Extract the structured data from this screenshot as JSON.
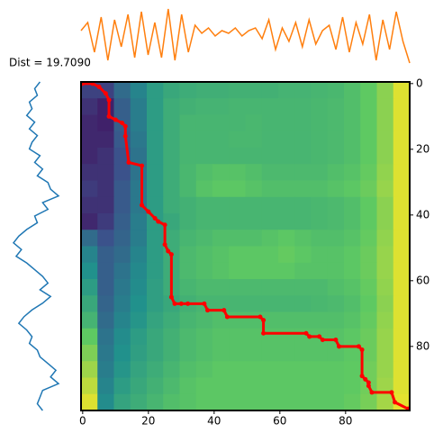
{
  "chart_data": [
    {
      "type": "heatmap",
      "title": "Dist = 19.7090",
      "values": [
        [
          0.2,
          0.2,
          0.35,
          0.45,
          0.55,
          0.6,
          0.62,
          0.63,
          0.63,
          0.64,
          0.64,
          0.64,
          0.65,
          0.65,
          0.66,
          0.67,
          0.7,
          0.75,
          0.82,
          0.95
        ],
        [
          0.15,
          0.1,
          0.3,
          0.42,
          0.55,
          0.62,
          0.64,
          0.65,
          0.65,
          0.66,
          0.66,
          0.66,
          0.66,
          0.66,
          0.67,
          0.68,
          0.7,
          0.75,
          0.82,
          0.95
        ],
        [
          0.12,
          0.1,
          0.3,
          0.42,
          0.55,
          0.62,
          0.66,
          0.66,
          0.66,
          0.66,
          0.67,
          0.66,
          0.66,
          0.66,
          0.67,
          0.68,
          0.7,
          0.75,
          0.82,
          0.95
        ],
        [
          0.12,
          0.12,
          0.28,
          0.4,
          0.55,
          0.62,
          0.66,
          0.66,
          0.66,
          0.67,
          0.67,
          0.66,
          0.66,
          0.66,
          0.67,
          0.68,
          0.7,
          0.75,
          0.82,
          0.95
        ],
        [
          0.12,
          0.15,
          0.25,
          0.38,
          0.55,
          0.62,
          0.66,
          0.66,
          0.66,
          0.66,
          0.66,
          0.66,
          0.66,
          0.66,
          0.67,
          0.68,
          0.7,
          0.75,
          0.82,
          0.95
        ],
        [
          0.15,
          0.15,
          0.25,
          0.38,
          0.55,
          0.62,
          0.67,
          0.7,
          0.72,
          0.72,
          0.7,
          0.68,
          0.68,
          0.68,
          0.68,
          0.7,
          0.72,
          0.76,
          0.83,
          0.95
        ],
        [
          0.18,
          0.15,
          0.28,
          0.4,
          0.55,
          0.62,
          0.67,
          0.72,
          0.74,
          0.74,
          0.72,
          0.7,
          0.7,
          0.7,
          0.7,
          0.72,
          0.74,
          0.77,
          0.84,
          0.95
        ],
        [
          0.15,
          0.15,
          0.28,
          0.4,
          0.55,
          0.62,
          0.64,
          0.66,
          0.66,
          0.66,
          0.66,
          0.66,
          0.66,
          0.66,
          0.67,
          0.68,
          0.7,
          0.75,
          0.82,
          0.95
        ],
        [
          0.12,
          0.18,
          0.3,
          0.42,
          0.55,
          0.6,
          0.64,
          0.66,
          0.66,
          0.66,
          0.66,
          0.66,
          0.66,
          0.66,
          0.67,
          0.68,
          0.7,
          0.75,
          0.82,
          0.95
        ],
        [
          0.35,
          0.25,
          0.32,
          0.42,
          0.55,
          0.62,
          0.66,
          0.68,
          0.7,
          0.7,
          0.7,
          0.72,
          0.74,
          0.72,
          0.7,
          0.7,
          0.72,
          0.76,
          0.83,
          0.95
        ],
        [
          0.45,
          0.3,
          0.35,
          0.45,
          0.55,
          0.62,
          0.68,
          0.7,
          0.72,
          0.74,
          0.74,
          0.74,
          0.76,
          0.74,
          0.72,
          0.72,
          0.74,
          0.77,
          0.84,
          0.95
        ],
        [
          0.5,
          0.3,
          0.38,
          0.47,
          0.55,
          0.62,
          0.68,
          0.7,
          0.72,
          0.74,
          0.74,
          0.74,
          0.74,
          0.72,
          0.72,
          0.72,
          0.74,
          0.77,
          0.84,
          0.95
        ],
        [
          0.55,
          0.3,
          0.4,
          0.48,
          0.56,
          0.62,
          0.66,
          0.68,
          0.68,
          0.68,
          0.68,
          0.68,
          0.68,
          0.68,
          0.68,
          0.7,
          0.72,
          0.76,
          0.83,
          0.95
        ],
        [
          0.6,
          0.32,
          0.42,
          0.5,
          0.56,
          0.6,
          0.64,
          0.66,
          0.66,
          0.66,
          0.66,
          0.66,
          0.66,
          0.66,
          0.67,
          0.68,
          0.7,
          0.75,
          0.82,
          0.95
        ],
        [
          0.65,
          0.35,
          0.45,
          0.52,
          0.58,
          0.62,
          0.66,
          0.68,
          0.7,
          0.7,
          0.7,
          0.7,
          0.7,
          0.7,
          0.7,
          0.7,
          0.72,
          0.76,
          0.83,
          0.95
        ],
        [
          0.75,
          0.38,
          0.48,
          0.55,
          0.6,
          0.64,
          0.68,
          0.7,
          0.72,
          0.72,
          0.72,
          0.72,
          0.72,
          0.72,
          0.72,
          0.72,
          0.74,
          0.77,
          0.84,
          0.95
        ],
        [
          0.8,
          0.4,
          0.5,
          0.56,
          0.6,
          0.64,
          0.68,
          0.7,
          0.72,
          0.72,
          0.72,
          0.72,
          0.72,
          0.72,
          0.72,
          0.72,
          0.74,
          0.77,
          0.84,
          0.95
        ],
        [
          0.85,
          0.42,
          0.52,
          0.58,
          0.62,
          0.66,
          0.7,
          0.72,
          0.74,
          0.74,
          0.74,
          0.74,
          0.74,
          0.74,
          0.74,
          0.74,
          0.75,
          0.78,
          0.84,
          0.95
        ],
        [
          0.9,
          0.45,
          0.55,
          0.6,
          0.64,
          0.68,
          0.72,
          0.74,
          0.74,
          0.74,
          0.74,
          0.74,
          0.74,
          0.74,
          0.74,
          0.74,
          0.75,
          0.78,
          0.85,
          0.95
        ],
        [
          0.95,
          0.48,
          0.58,
          0.62,
          0.66,
          0.7,
          0.72,
          0.74,
          0.74,
          0.74,
          0.74,
          0.74,
          0.74,
          0.74,
          0.74,
          0.74,
          0.76,
          0.79,
          0.86,
          0.96
        ]
      ],
      "xlim": [
        -0.5,
        99.5
      ],
      "ylim": [
        -0.5,
        99.5
      ],
      "xticks": [
        0,
        20,
        40,
        60,
        80
      ],
      "yticks": [
        0,
        20,
        40,
        60,
        80
      ],
      "path": {
        "color": "#ff0000",
        "x": [
          0,
          3,
          5,
          7,
          8,
          8,
          10,
          12,
          13,
          13,
          14,
          18,
          18,
          20,
          22,
          23,
          25,
          25,
          26,
          27,
          27,
          28,
          30,
          32,
          37,
          38,
          43,
          44,
          54,
          55,
          55,
          68,
          69,
          72,
          73,
          77,
          78,
          84,
          85,
          85,
          86,
          87,
          87,
          88,
          94,
          95,
          99
        ],
        "y": [
          0,
          0,
          1,
          3,
          5,
          10,
          11,
          12,
          13,
          16,
          24,
          25,
          37,
          39,
          41,
          42,
          43,
          49,
          51,
          52,
          65,
          67,
          67,
          67,
          67,
          69,
          69,
          71,
          71,
          72,
          76,
          76,
          77,
          77,
          78,
          78,
          80,
          80,
          81,
          89,
          90,
          91,
          92,
          94,
          94,
          97,
          99
        ]
      }
    },
    {
      "type": "line",
      "color": "#ff7f0e",
      "values": [
        0.2,
        0.5,
        -0.6,
        0.7,
        -0.9,
        0.6,
        -0.4,
        0.8,
        -0.8,
        0.9,
        -0.7,
        0.5,
        -0.8,
        1.0,
        -0.9,
        0.8,
        -0.6,
        0.4,
        0.1,
        0.3,
        0.0,
        0.2,
        0.1,
        0.3,
        0.0,
        0.2,
        0.3,
        -0.1,
        0.6,
        -0.5,
        0.3,
        -0.2,
        0.5,
        -0.4,
        0.6,
        -0.3,
        0.2,
        0.4,
        -0.5,
        0.7,
        -0.6,
        0.5,
        -0.3,
        0.8,
        -0.9,
        0.6,
        -0.5,
        0.9,
        -0.2,
        -1.0
      ]
    },
    {
      "type": "vline",
      "color": "#1f77b4",
      "values": [
        0.55,
        0.45,
        0.5,
        0.35,
        0.4,
        0.3,
        0.45,
        0.35,
        0.5,
        0.4,
        0.35,
        0.55,
        0.45,
        0.6,
        0.5,
        0.7,
        0.75,
        0.9,
        0.6,
        0.7,
        0.45,
        0.5,
        0.3,
        0.15,
        0.05,
        0.2,
        0.1,
        0.3,
        0.45,
        0.6,
        0.7,
        0.55,
        0.75,
        0.6,
        0.4,
        0.25,
        0.15,
        0.3,
        0.4,
        0.35,
        0.5,
        0.55,
        0.7,
        0.85,
        0.75,
        0.9,
        0.6,
        0.55,
        0.5,
        0.6
      ]
    }
  ]
}
